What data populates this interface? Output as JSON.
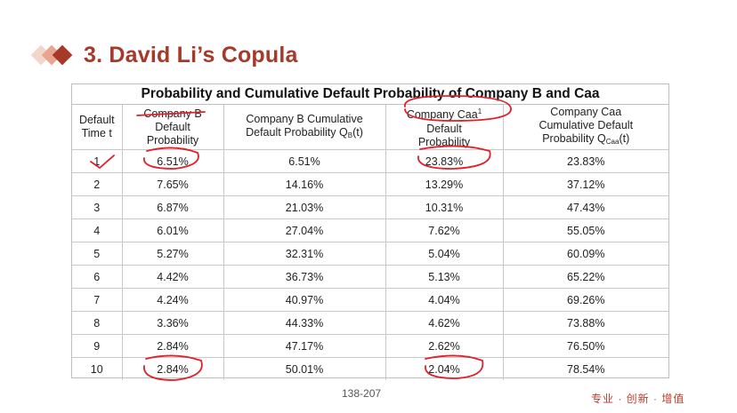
{
  "slide": {
    "title": "3. David Li’s Copula",
    "page_number": "138-207",
    "footer": "专业 · 创新 · 增值"
  },
  "table": {
    "caption": "Probability and Cumulative Default Probability of Company B and Caa",
    "headers": {
      "col1_line1": "Default",
      "col1_line2": "Time t",
      "col2_line1": "Company B",
      "col2_line2": "Default",
      "col2_line3": "Probability",
      "col3_line1": "Company B Cumulative",
      "col3_line2": "Default Probability Q",
      "col3_sub": "B",
      "col3_suffix": "(t)",
      "col4_line1": "Company Caa",
      "col4_line2": "Default",
      "col4_line3": "Probability",
      "col5_line1": "Company Caa",
      "col5_line2": "Cumulative Default",
      "col5_line3": "Probability Q",
      "col5_sub": "Caa",
      "col5_suffix": "(t)"
    },
    "rows": [
      [
        "1",
        "6.51%",
        "6.51%",
        "23.83%",
        "23.83%"
      ],
      [
        "2",
        "7.65%",
        "14.16%",
        "13.29%",
        "37.12%"
      ],
      [
        "3",
        "6.87%",
        "21.03%",
        "10.31%",
        "47.43%"
      ],
      [
        "4",
        "6.01%",
        "27.04%",
        "7.62%",
        "55.05%"
      ],
      [
        "5",
        "5.27%",
        "32.31%",
        "5.04%",
        "60.09%"
      ],
      [
        "6",
        "4.42%",
        "36.73%",
        "5.13%",
        "65.22%"
      ],
      [
        "7",
        "4.24%",
        "40.97%",
        "4.04%",
        "69.26%"
      ],
      [
        "8",
        "3.36%",
        "44.33%",
        "4.62%",
        "73.88%"
      ],
      [
        "9",
        "2.84%",
        "47.17%",
        "2.62%",
        "76.50%"
      ],
      [
        "10",
        "2.84%",
        "50.01%",
        "2.04%",
        "78.54%"
      ]
    ]
  },
  "colors": {
    "title": "#a53a2a",
    "annotation": "#e0202a",
    "footer": "#c0392b"
  }
}
